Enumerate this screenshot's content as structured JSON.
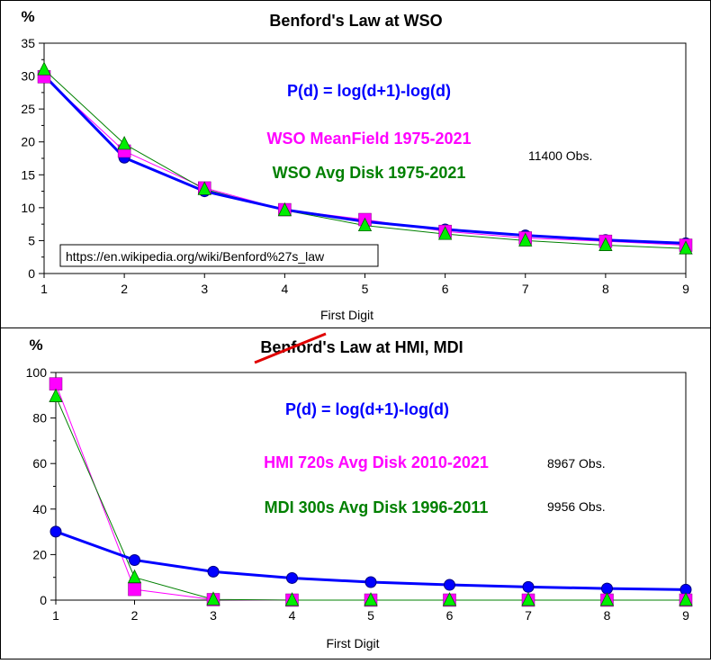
{
  "chart_data": [
    {
      "type": "line",
      "title": "Benford's Law at WSO",
      "ylabel": "%",
      "xlabel": "First Digit",
      "x": [
        1,
        2,
        3,
        4,
        5,
        6,
        7,
        8,
        9
      ],
      "xlim": [
        1,
        9
      ],
      "ylim": [
        0,
        35
      ],
      "yticks": [
        0,
        5,
        10,
        15,
        20,
        25,
        30,
        35
      ],
      "legend_texts": [
        {
          "text": "P(d) = log(d+1)-log(d)",
          "color": "#0000ff"
        },
        {
          "text": "WSO MeanField 1975-2021",
          "color": "#ff00ff"
        },
        {
          "text": "WSO Avg Disk 1975-2021",
          "color": "#008000"
        }
      ],
      "annotations": [
        {
          "text": "11400 Obs."
        }
      ],
      "link_text": "https://en.wikipedia.org/wiki/Benford%27s_law",
      "series": [
        {
          "name": "P(d) = log(d+1)-log(d)",
          "color": "#0000ff",
          "marker": "circle",
          "values": [
            30.1,
            17.6,
            12.5,
            9.7,
            7.9,
            6.7,
            5.8,
            5.1,
            4.6
          ]
        },
        {
          "name": "WSO MeanField 1975-2021",
          "color": "#ff00ff",
          "marker": "square",
          "values": [
            29.9,
            18.6,
            13.0,
            9.7,
            8.2,
            6.4,
            5.4,
            4.9,
            4.3
          ]
        },
        {
          "name": "WSO Avg Disk 1975-2021",
          "color": "#00dd00",
          "marker": "triangle",
          "values": [
            31.0,
            19.7,
            12.8,
            9.6,
            7.3,
            6.0,
            5.0,
            4.3,
            3.8
          ]
        }
      ]
    },
    {
      "type": "line",
      "title": "Benford's Law at HMI, MDI",
      "ylabel": "%",
      "xlabel": "First Digit",
      "x": [
        1,
        2,
        3,
        4,
        5,
        6,
        7,
        8,
        9
      ],
      "xlim": [
        1,
        9
      ],
      "ylim": [
        0,
        100
      ],
      "yticks": [
        0,
        20,
        40,
        60,
        80,
        100
      ],
      "legend_texts": [
        {
          "text": "P(d) = log(d+1)-log(d)",
          "color": "#0000ff"
        },
        {
          "text": "HMI 720s Avg Disk 2010-2021",
          "color": "#ff00ff"
        },
        {
          "text": "MDI 300s Avg Disk 1996-2011",
          "color": "#008000"
        }
      ],
      "annotations": [
        {
          "text": "8967 Obs."
        },
        {
          "text": "9956 Obs."
        }
      ],
      "series": [
        {
          "name": "P(d) = log(d+1)-log(d)",
          "color": "#0000ff",
          "marker": "circle",
          "values": [
            30.1,
            17.6,
            12.5,
            9.7,
            7.9,
            6.7,
            5.8,
            5.1,
            4.6
          ]
        },
        {
          "name": "HMI 720s Avg Disk 2010-2021",
          "color": "#ff00ff",
          "marker": "square",
          "values": [
            95.0,
            4.7,
            0.2,
            0.0,
            0.0,
            0.0,
            0.0,
            0.0,
            0.0
          ]
        },
        {
          "name": "MDI 300s Avg Disk 1996-2011",
          "color": "#00dd00",
          "marker": "triangle",
          "values": [
            89.5,
            10.0,
            0.3,
            0.0,
            0.0,
            0.0,
            0.0,
            0.0,
            0.0
          ]
        }
      ]
    }
  ]
}
